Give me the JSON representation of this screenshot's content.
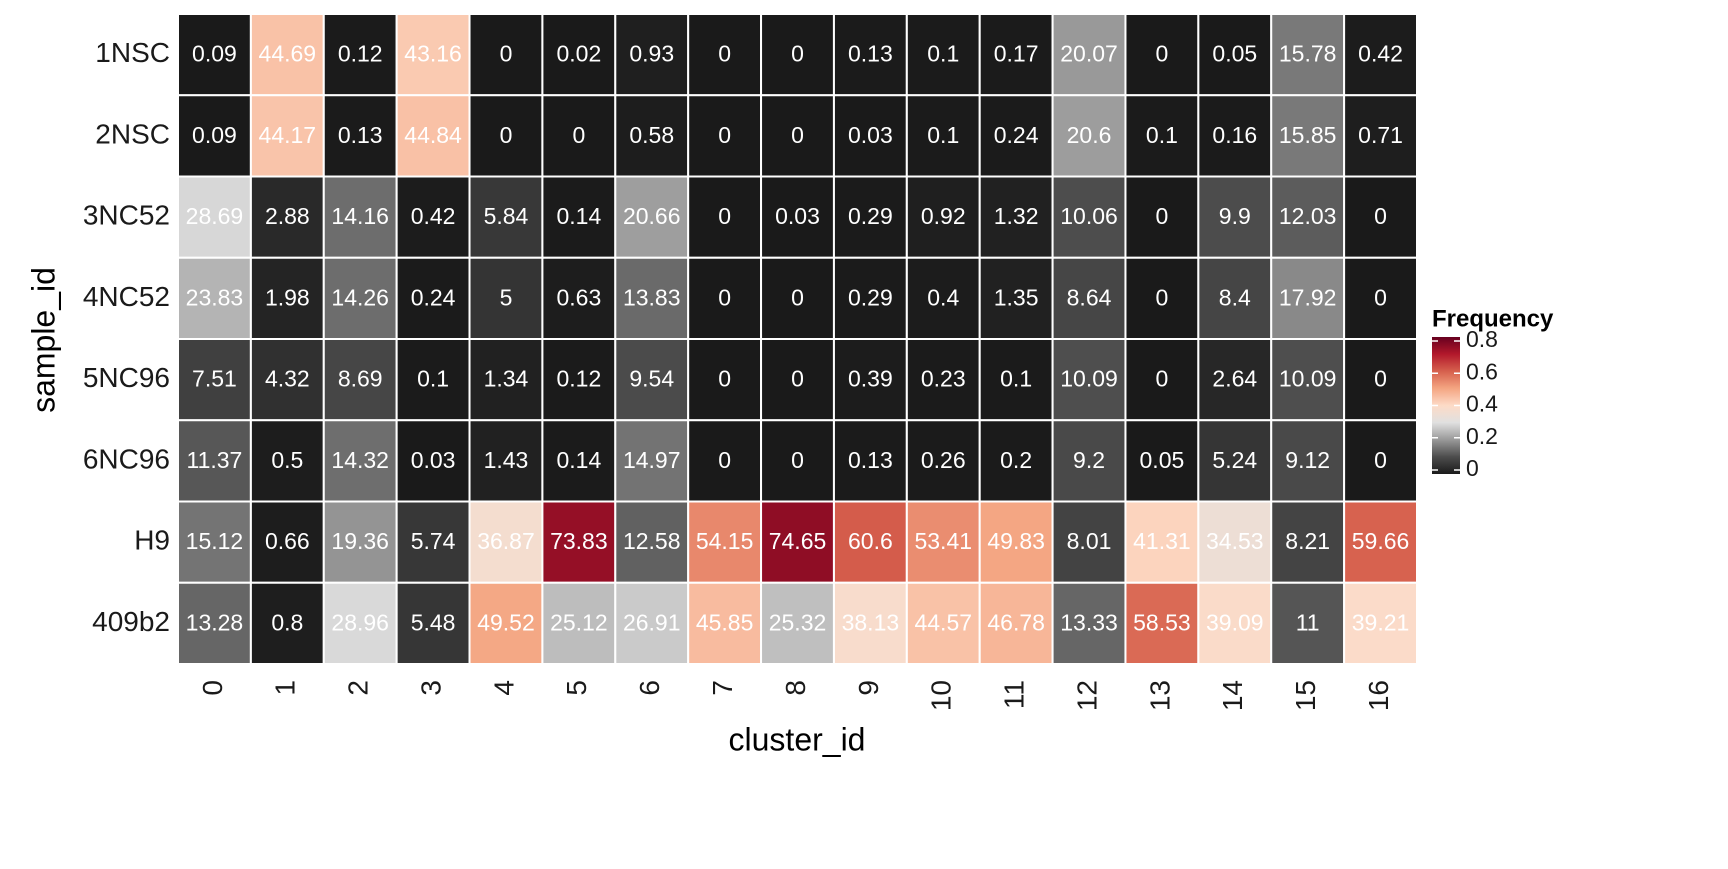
{
  "chart_data": {
    "type": "heatmap",
    "x_label": "cluster_id",
    "y_label": "sample_id",
    "x_categories": [
      "0",
      "1",
      "2",
      "3",
      "4",
      "5",
      "6",
      "7",
      "8",
      "9",
      "10",
      "11",
      "12",
      "13",
      "14",
      "15",
      "16"
    ],
    "y_categories": [
      "1NSC",
      "2NSC",
      "3NC52",
      "4NC52",
      "5NC96",
      "6NC96",
      "H9",
      "409b2"
    ],
    "values": [
      [
        0.09,
        44.69,
        0.12,
        43.16,
        0,
        0.02,
        0.93,
        0,
        0,
        0.13,
        0.1,
        0.17,
        20.07,
        0,
        0.05,
        15.78,
        0.42
      ],
      [
        0.09,
        44.17,
        0.13,
        44.84,
        0,
        0,
        0.58,
        0,
        0,
        0.03,
        0.1,
        0.24,
        20.6,
        0.1,
        0.16,
        15.85,
        0.71
      ],
      [
        28.69,
        2.88,
        14.16,
        0.42,
        5.84,
        0.14,
        20.66,
        0,
        0.03,
        0.29,
        0.92,
        1.32,
        10.06,
        0,
        9.9,
        12.03,
        0
      ],
      [
        23.83,
        1.98,
        14.26,
        0.24,
        5,
        0.63,
        13.83,
        0,
        0,
        0.29,
        0.4,
        1.35,
        8.64,
        0,
        8.4,
        17.92,
        0
      ],
      [
        7.51,
        4.32,
        8.69,
        0.1,
        1.34,
        0.12,
        9.54,
        0,
        0,
        0.39,
        0.23,
        0.1,
        10.09,
        0,
        2.64,
        10.09,
        0
      ],
      [
        11.37,
        0.5,
        14.32,
        0.03,
        1.43,
        0.14,
        14.97,
        0,
        0,
        0.13,
        0.26,
        0.2,
        9.2,
        0.05,
        5.24,
        9.12,
        0
      ],
      [
        15.12,
        0.66,
        19.36,
        5.74,
        36.87,
        73.83,
        12.58,
        54.15,
        74.65,
        60.6,
        53.41,
        49.83,
        8.01,
        41.31,
        34.53,
        8.21,
        59.66
      ],
      [
        13.28,
        0.8,
        28.96,
        5.48,
        49.52,
        25.12,
        26.91,
        45.85,
        25.32,
        38.13,
        44.57,
        46.78,
        13.33,
        58.53,
        39.09,
        11,
        39.21
      ]
    ],
    "legend_title": "Frequency",
    "clim": [
      0,
      0.8
    ],
    "cticks": [
      0,
      0.2,
      0.4,
      0.6,
      0.8
    ],
    "colormap": [
      "#1a1a1a",
      "#4d4d4d",
      "#999999",
      "#e0e0e0",
      "#fddbc7",
      "#f4a582",
      "#d6604d",
      "#b2182b",
      "#67001f"
    ]
  }
}
